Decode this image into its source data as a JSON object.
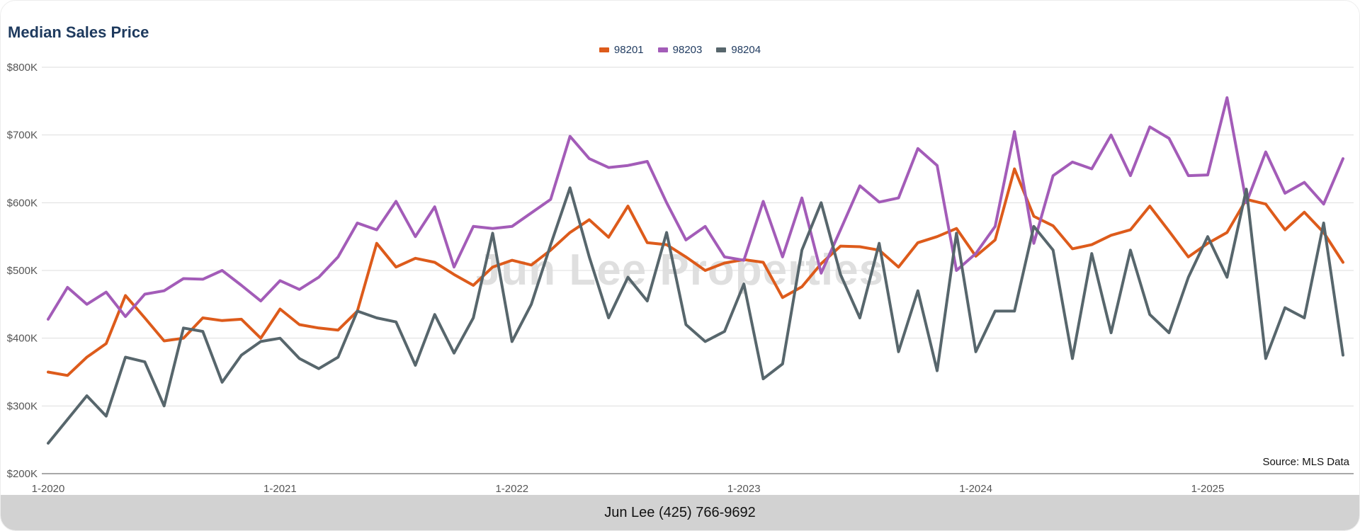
{
  "chart": {
    "title": "Median Sales Price"
  },
  "watermark": "Jun Lee Properties",
  "source": "Source: MLS Data",
  "footer": {
    "contact": "Jun Lee (425) 766-9692"
  },
  "colors": {
    "title_navy": "#1E3A5E",
    "grid_light": "#DDDDDD",
    "axis_dark": "#8C8C8C",
    "axis_text": "#555555",
    "footer_gray": "#D2D2D2"
  },
  "chart_data": {
    "type": "line",
    "title": "Median Sales Price",
    "y_unit": "USD thousands",
    "ylim": [
      200,
      800
    ],
    "grid": true,
    "legend_position": "top-center",
    "x_count": 68,
    "x_ticks": [
      {
        "index": 0,
        "label": "1-2020"
      },
      {
        "index": 12,
        "label": "1-2021"
      },
      {
        "index": 24,
        "label": "1-2022"
      },
      {
        "index": 36,
        "label": "1-2023"
      },
      {
        "index": 48,
        "label": "1-2024"
      },
      {
        "index": 60,
        "label": "1-2025"
      }
    ],
    "y_ticks": [
      {
        "value": 200,
        "label": "$200K"
      },
      {
        "value": 300,
        "label": "$300K"
      },
      {
        "value": 400,
        "label": "$400K"
      },
      {
        "value": 500,
        "label": "$500K"
      },
      {
        "value": 600,
        "label": "$600K"
      },
      {
        "value": 700,
        "label": "$700K"
      },
      {
        "value": 800,
        "label": "$800K"
      }
    ],
    "series": [
      {
        "name": "98201",
        "color": "#DD5B1B",
        "values": [
          350,
          345,
          372,
          392,
          463,
          430,
          396,
          400,
          430,
          426,
          428,
          400,
          443,
          420,
          415,
          412,
          440,
          540,
          505,
          518,
          512,
          494,
          478,
          505,
          515,
          508,
          530,
          556,
          575,
          549,
          595,
          541,
          538,
          520,
          500,
          511,
          516,
          512,
          460,
          476,
          510,
          536,
          535,
          530,
          505,
          541,
          550,
          562,
          521,
          545,
          650,
          580,
          566,
          532,
          538,
          552,
          560,
          595,
          558,
          520,
          540,
          556,
          605,
          598,
          560,
          586,
          556,
          512
        ]
      },
      {
        "name": "98203",
        "color": "#A35CB8",
        "values": [
          428,
          475,
          450,
          468,
          432,
          465,
          470,
          488,
          487,
          500,
          478,
          455,
          485,
          472,
          490,
          520,
          570,
          560,
          602,
          550,
          594,
          505,
          565,
          562,
          565,
          585,
          605,
          698,
          665,
          652,
          655,
          661,
          600,
          545,
          565,
          520,
          515,
          602,
          520,
          607,
          496,
          560,
          625,
          601,
          607,
          680,
          655,
          500,
          525,
          565,
          705,
          540,
          640,
          660,
          650,
          700,
          640,
          712,
          695,
          640,
          641,
          755,
          600,
          675,
          614,
          630,
          598,
          665
        ]
      },
      {
        "name": "98204",
        "color": "#57666C",
        "values": [
          245,
          280,
          315,
          285,
          372,
          365,
          300,
          415,
          410,
          335,
          375,
          395,
          400,
          370,
          355,
          372,
          440,
          430,
          424,
          360,
          435,
          378,
          430,
          555,
          395,
          450,
          538,
          622,
          520,
          430,
          490,
          455,
          556,
          420,
          395,
          410,
          480,
          340,
          362,
          530,
          600,
          494,
          430,
          540,
          380,
          470,
          352,
          555,
          380,
          440,
          440,
          565,
          530,
          370,
          525,
          408,
          530,
          435,
          408,
          490,
          550,
          490,
          620,
          370,
          445,
          430,
          570,
          375
        ]
      }
    ]
  }
}
